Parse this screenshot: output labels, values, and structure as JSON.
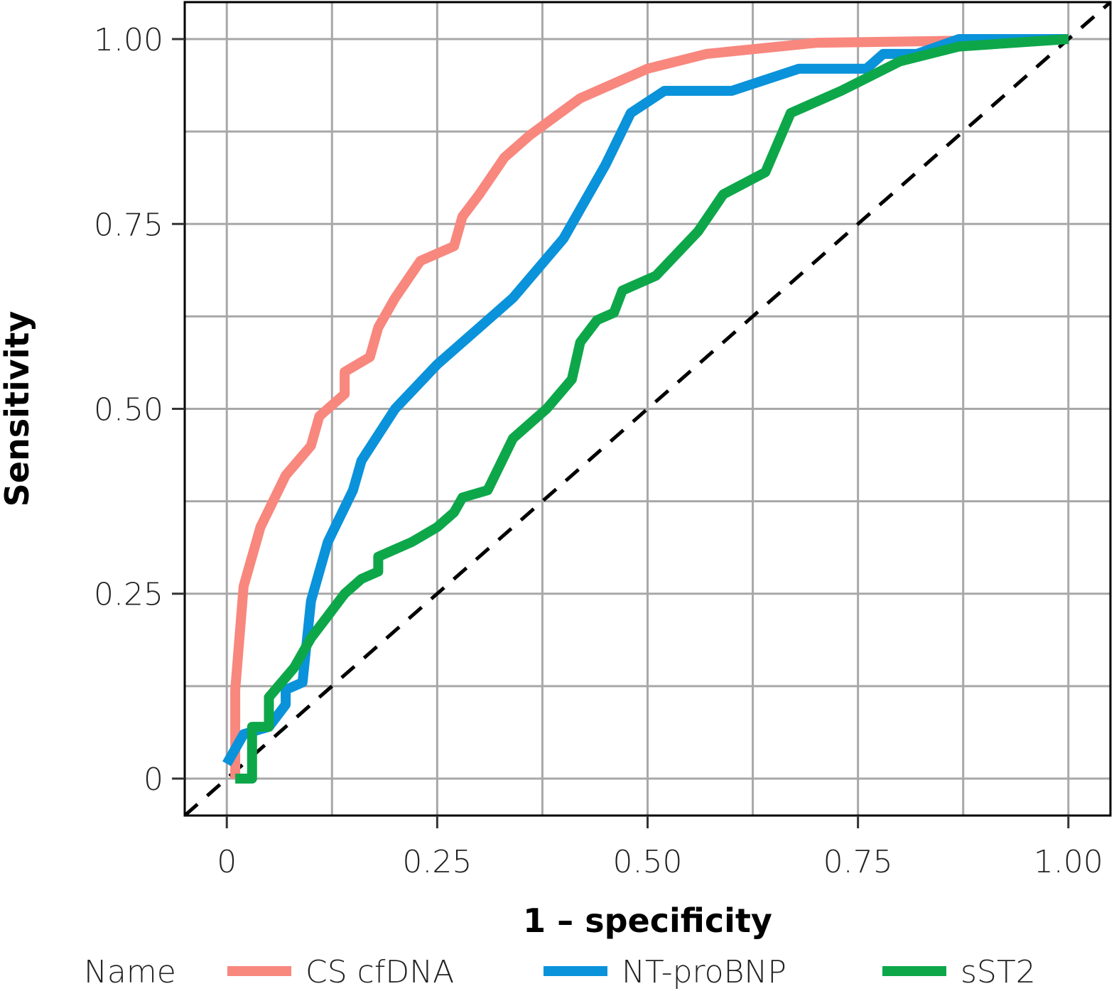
{
  "chart_data": {
    "type": "line",
    "xlabel": "1 – specificity",
    "ylabel": "Sensitivity",
    "xlim": [
      -0.05,
      1.05
    ],
    "ylim": [
      -0.05,
      1.05
    ],
    "x_ticks": [
      {
        "value": 0,
        "label": "0"
      },
      {
        "value": 0.25,
        "label": "0.25"
      },
      {
        "value": 0.5,
        "label": "0.50"
      },
      {
        "value": 0.75,
        "label": "0.75"
      },
      {
        "value": 1.0,
        "label": "1.00"
      }
    ],
    "y_ticks": [
      {
        "value": 0,
        "label": "0"
      },
      {
        "value": 0.25,
        "label": "0.25"
      },
      {
        "value": 0.5,
        "label": "0.50"
      },
      {
        "value": 0.75,
        "label": "0.75"
      },
      {
        "value": 1.0,
        "label": "1.00"
      }
    ],
    "minor_grid": [
      0.125,
      0.375,
      0.625,
      0.875
    ],
    "grid": true,
    "legend_title": "Name",
    "legend_position": "bottom",
    "reference_line": {
      "x": [
        -0.05,
        1.05
      ],
      "y": [
        -0.05,
        1.05
      ],
      "style": "dashed",
      "color": "#000000"
    },
    "series": [
      {
        "name": "CS cfDNA",
        "color": "#F8877E",
        "points": [
          [
            0.01,
            0.0
          ],
          [
            0.01,
            0.07
          ],
          [
            0.01,
            0.12
          ],
          [
            0.02,
            0.26
          ],
          [
            0.04,
            0.34
          ],
          [
            0.07,
            0.41
          ],
          [
            0.1,
            0.45
          ],
          [
            0.11,
            0.49
          ],
          [
            0.14,
            0.52
          ],
          [
            0.14,
            0.55
          ],
          [
            0.17,
            0.57
          ],
          [
            0.18,
            0.61
          ],
          [
            0.2,
            0.65
          ],
          [
            0.23,
            0.7
          ],
          [
            0.27,
            0.72
          ],
          [
            0.28,
            0.76
          ],
          [
            0.3,
            0.79
          ],
          [
            0.33,
            0.84
          ],
          [
            0.36,
            0.87
          ],
          [
            0.42,
            0.92
          ],
          [
            0.5,
            0.96
          ],
          [
            0.57,
            0.98
          ],
          [
            0.7,
            0.995
          ],
          [
            1.0,
            1.0
          ]
        ]
      },
      {
        "name": "NT-proBNP",
        "color": "#0A92DA",
        "points": [
          [
            0.0,
            0.02
          ],
          [
            0.02,
            0.06
          ],
          [
            0.05,
            0.07
          ],
          [
            0.07,
            0.1
          ],
          [
            0.07,
            0.12
          ],
          [
            0.09,
            0.13
          ],
          [
            0.1,
            0.24
          ],
          [
            0.12,
            0.32
          ],
          [
            0.15,
            0.39
          ],
          [
            0.16,
            0.43
          ],
          [
            0.2,
            0.5
          ],
          [
            0.25,
            0.56
          ],
          [
            0.32,
            0.63
          ],
          [
            0.34,
            0.65
          ],
          [
            0.4,
            0.73
          ],
          [
            0.45,
            0.83
          ],
          [
            0.48,
            0.9
          ],
          [
            0.52,
            0.93
          ],
          [
            0.56,
            0.93
          ],
          [
            0.6,
            0.93
          ],
          [
            0.68,
            0.96
          ],
          [
            0.76,
            0.96
          ],
          [
            0.78,
            0.98
          ],
          [
            0.82,
            0.98
          ],
          [
            0.87,
            1.0
          ],
          [
            1.0,
            1.0
          ]
        ]
      },
      {
        "name": "sST2",
        "color": "#0DA74A",
        "points": [
          [
            0.01,
            0.0
          ],
          [
            0.03,
            0.0
          ],
          [
            0.03,
            0.07
          ],
          [
            0.05,
            0.07
          ],
          [
            0.05,
            0.11
          ],
          [
            0.08,
            0.15
          ],
          [
            0.1,
            0.19
          ],
          [
            0.12,
            0.22
          ],
          [
            0.14,
            0.25
          ],
          [
            0.16,
            0.27
          ],
          [
            0.18,
            0.28
          ],
          [
            0.18,
            0.3
          ],
          [
            0.22,
            0.32
          ],
          [
            0.25,
            0.34
          ],
          [
            0.27,
            0.36
          ],
          [
            0.28,
            0.38
          ],
          [
            0.31,
            0.39
          ],
          [
            0.34,
            0.46
          ],
          [
            0.38,
            0.5
          ],
          [
            0.41,
            0.54
          ],
          [
            0.42,
            0.59
          ],
          [
            0.44,
            0.62
          ],
          [
            0.46,
            0.63
          ],
          [
            0.47,
            0.66
          ],
          [
            0.51,
            0.68
          ],
          [
            0.56,
            0.74
          ],
          [
            0.59,
            0.79
          ],
          [
            0.64,
            0.82
          ],
          [
            0.67,
            0.9
          ],
          [
            0.73,
            0.93
          ],
          [
            0.8,
            0.97
          ],
          [
            0.87,
            0.99
          ],
          [
            1.0,
            1.0
          ]
        ]
      }
    ]
  }
}
